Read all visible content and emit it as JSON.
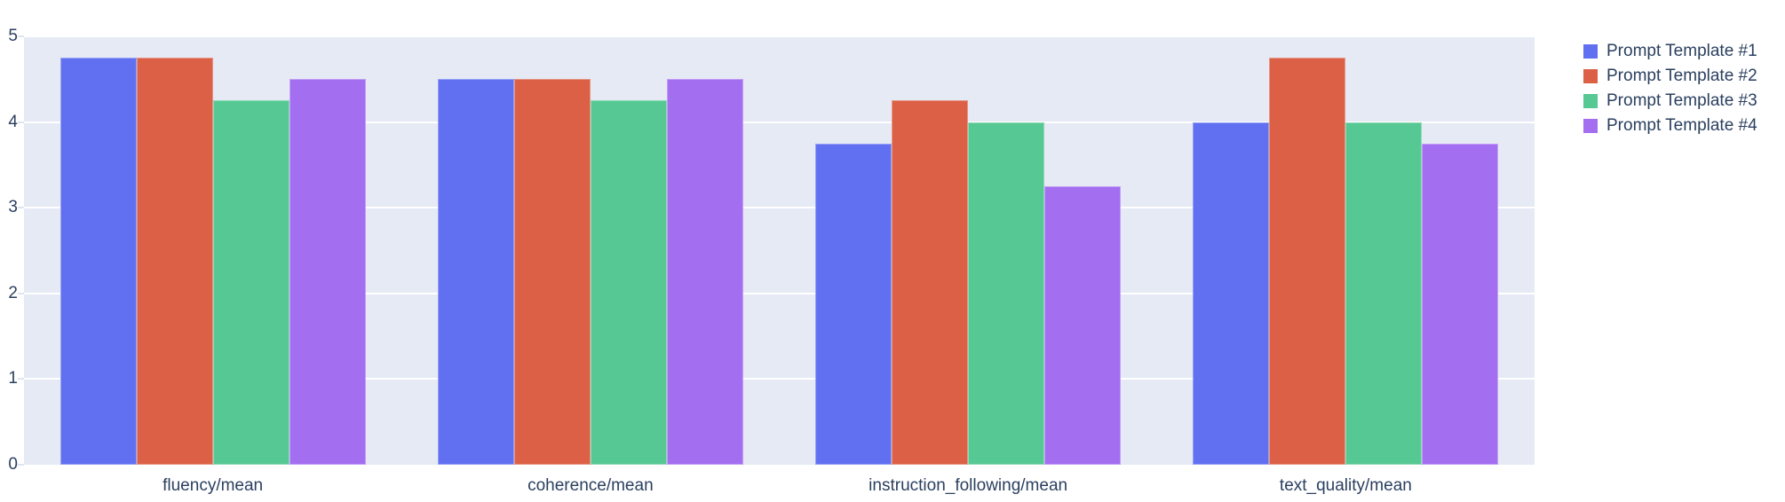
{
  "chart_data": {
    "type": "bar",
    "title": "",
    "xlabel": "",
    "ylabel": "",
    "categories": [
      "fluency/mean",
      "coherence/mean",
      "instruction_following/mean",
      "text_quality/mean"
    ],
    "series": [
      {
        "name": "Prompt Template #1",
        "color": "#6170F0",
        "values": [
          4.75,
          4.5,
          3.75,
          4.0
        ]
      },
      {
        "name": "Prompt Template #2",
        "color": "#DB6046",
        "values": [
          4.75,
          4.5,
          4.25,
          4.75
        ]
      },
      {
        "name": "Prompt Template #3",
        "color": "#56C893",
        "values": [
          4.25,
          4.25,
          4.0,
          4.0
        ]
      },
      {
        "name": "Prompt Template #4",
        "color": "#A46EF1",
        "values": [
          4.5,
          4.5,
          3.25,
          3.75
        ]
      }
    ],
    "ylim": [
      0,
      5
    ],
    "yticks": [
      0,
      1,
      2,
      3,
      4,
      5
    ],
    "grid": true,
    "legend_position": "right",
    "colors": {
      "plot_background": "#E5EAF4",
      "gridline": "#FFFFFF",
      "tick_dash": "#DFE4EE",
      "text": "#2A3F5F",
      "page_background": "#FFFFFF"
    }
  }
}
